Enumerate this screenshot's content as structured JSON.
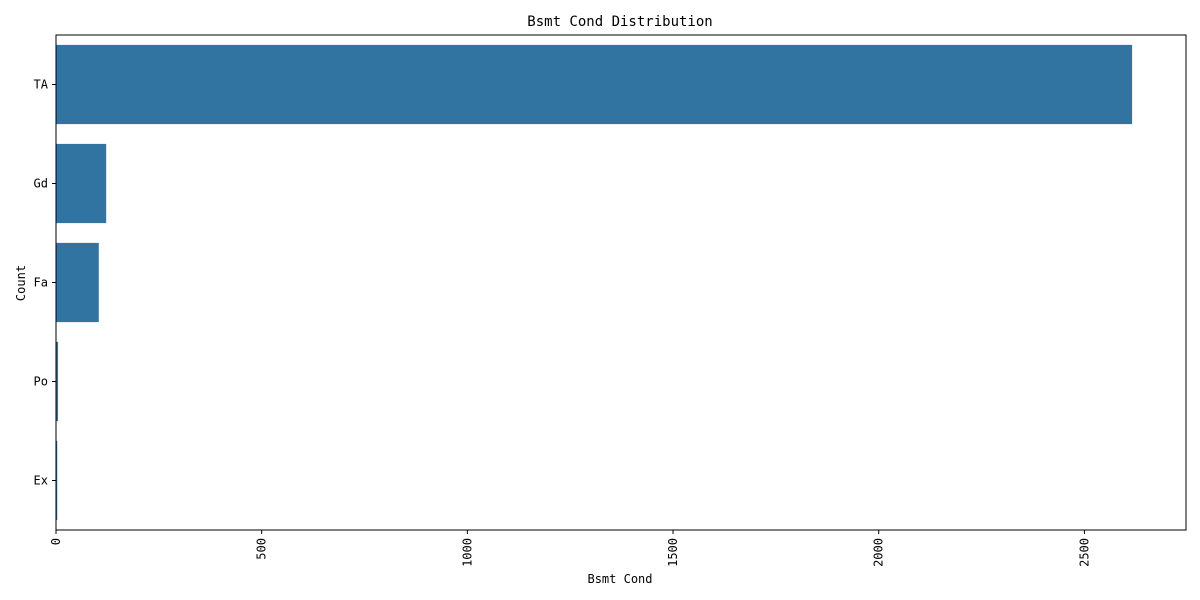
{
  "chart_data": {
    "type": "bar",
    "orientation": "horizontal",
    "title": "Bsmt Cond Distribution",
    "xlabel": "Bsmt Cond",
    "ylabel": "Count",
    "categories": [
      "TA",
      "Gd",
      "Fa",
      "Po",
      "Ex"
    ],
    "values": [
      2616,
      122,
      104,
      5,
      3
    ],
    "xlim": [
      0,
      2747
    ],
    "xticks": [
      0,
      500,
      1000,
      1500,
      2000,
      2500
    ],
    "grid": false,
    "legend": "none",
    "bar_color": "#3274a1"
  }
}
